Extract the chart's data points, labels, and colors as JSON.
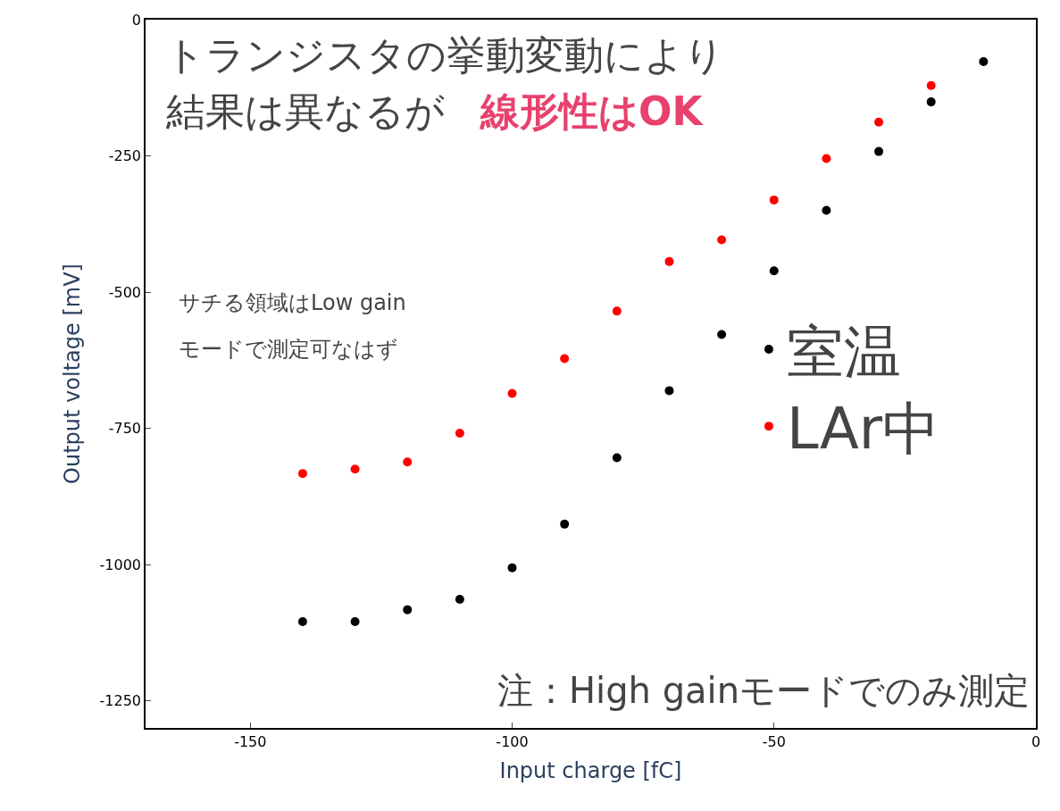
{
  "chart_data": {
    "type": "scatter",
    "xlabel": "Input charge [fC]",
    "ylabel": "Output voltage [mV]",
    "annotations": [
      "トランジスタの挙動変動により",
      "結果は異なるが",
      "線形性はOK",
      "サチる領域はLow gain",
      "モードで測定可なはず",
      "注：High gainモードでのみ測定"
    ],
    "x": [
      -140,
      -130,
      -120,
      -110,
      -100,
      -90,
      -80,
      -70,
      -60,
      -50,
      -40,
      -30,
      -20,
      -10
    ],
    "series": [
      {
        "name": "室温",
        "color": "#000000",
        "values": [
          -1105,
          -1105,
          -1083,
          -1064,
          -1006,
          -926,
          -804,
          -681,
          -578,
          -461,
          -350,
          -242,
          -151,
          -77
        ]
      },
      {
        "name": "LAr中",
        "color": "#ff0000",
        "x": [
          -140,
          -130,
          -120,
          -110,
          -100,
          -90,
          -80,
          -70,
          -60,
          -50,
          -40,
          -30,
          -20
        ],
        "values": [
          -833,
          -825,
          -812,
          -759,
          -686,
          -622,
          -535,
          -444,
          -404,
          -331,
          -255,
          -188,
          -121
        ]
      }
    ],
    "xlim": [
      -170,
      0
    ],
    "ylim": [
      -1300,
      0
    ],
    "xticks": [
      -150,
      -100,
      -50,
      0
    ],
    "yticks": [
      0,
      -250,
      -500,
      -750,
      -1000,
      -1250
    ],
    "legend": "right",
    "marker": "circle"
  }
}
